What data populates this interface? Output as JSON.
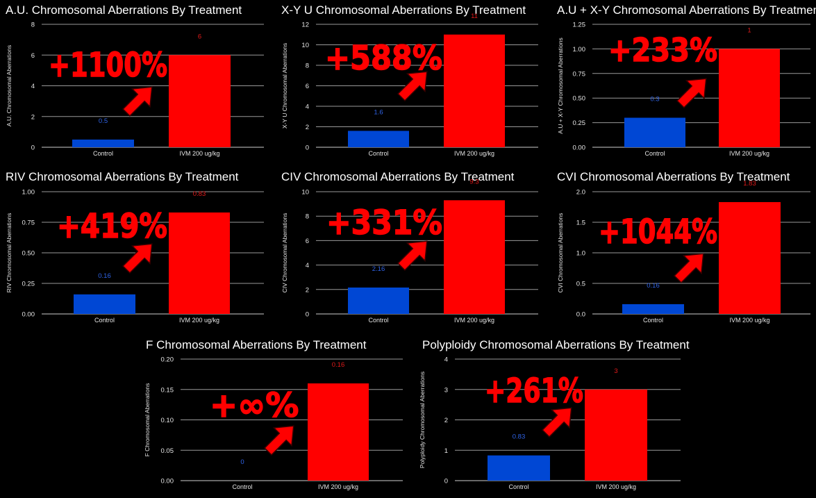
{
  "colors": {
    "control": "#0047d4",
    "treatment": "#ff0000",
    "grid": "#9a9a9a",
    "text": "#ffffff",
    "axis_text": "#e6e6e6"
  },
  "chart_data": [
    {
      "type": "bar",
      "title": "A.U. Chromosomal Aberrations By Treatment",
      "ylabel": "A.U. Chromosomal Aberrations",
      "categories": [
        "Control",
        "IVM 200 ug/kg"
      ],
      "values": [
        0.5,
        6
      ],
      "value_labels": [
        "0.5",
        "6"
      ],
      "ylim": [
        0,
        8
      ],
      "yticks": [
        "0",
        "2",
        "4",
        "6",
        "8"
      ],
      "annotation": "+1100%"
    },
    {
      "type": "bar",
      "title": "X-Y U Chromosomal Aberrations By Treatment",
      "ylabel": "X-Y U Chromosomal Aberrations",
      "categories": [
        "Control",
        "IVM 200 ug/kg"
      ],
      "values": [
        1.6,
        11
      ],
      "value_labels": [
        "1.6",
        "11"
      ],
      "ylim": [
        0,
        12
      ],
      "yticks": [
        "0",
        "2",
        "4",
        "6",
        "8",
        "10",
        "12"
      ],
      "annotation": "+588%"
    },
    {
      "type": "bar",
      "title": "A.U + X-Y Chromosomal Aberrations By Treatment",
      "ylabel": "A.U + X-Y Chromosomal Aberrations",
      "categories": [
        "Control",
        "IVM 200 ug/kg"
      ],
      "values": [
        0.3,
        1
      ],
      "value_labels": [
        "0.3",
        "1"
      ],
      "ylim": [
        0,
        1.25
      ],
      "yticks": [
        "0.00",
        "0.25",
        "0.50",
        "0.75",
        "1.00",
        "1.25"
      ],
      "annotation": "+233%"
    },
    {
      "type": "bar",
      "title": "RIV Chromosomal Aberrations By Treatment",
      "ylabel": "RIV Chromosomal Aberrations",
      "categories": [
        "Control",
        "IVM 200 ug/kg"
      ],
      "values": [
        0.16,
        0.83
      ],
      "value_labels": [
        "0.16",
        "0.83"
      ],
      "ylim": [
        0,
        1
      ],
      "yticks": [
        "0.00",
        "0.25",
        "0.50",
        "0.75",
        "1.00"
      ],
      "annotation": "+419%"
    },
    {
      "type": "bar",
      "title": "CIV Chromosomal Aberrations By Treatment",
      "ylabel": "CIV Chromosomal Aberrations",
      "categories": [
        "Control",
        "IVM 200 ug/kg"
      ],
      "values": [
        2.16,
        9.3
      ],
      "value_labels": [
        "2.16",
        "9.3"
      ],
      "ylim": [
        0,
        10
      ],
      "yticks": [
        "0",
        "2",
        "4",
        "6",
        "8",
        "10"
      ],
      "annotation": "+331%"
    },
    {
      "type": "bar",
      "title": "CVI Chromosomal Aberrations By Treatment",
      "ylabel": "CVI Chromosomal Aberrations",
      "categories": [
        "Control",
        "IVM 200 ug/kg"
      ],
      "values": [
        0.16,
        1.83
      ],
      "value_labels": [
        "0.16",
        "1.83"
      ],
      "ylim": [
        0,
        2
      ],
      "yticks": [
        "0.0",
        "0.5",
        "1.0",
        "1.5",
        "2.0"
      ],
      "annotation": "+1044%"
    },
    {
      "type": "bar",
      "title": "F Chromosomal Aberrations By Treatment",
      "ylabel": "F Chromosomal Aberrations",
      "categories": [
        "Control",
        "IVM 200 ug/kg"
      ],
      "values": [
        0,
        0.16
      ],
      "value_labels": [
        "0",
        "0.16"
      ],
      "ylim": [
        0,
        0.2
      ],
      "yticks": [
        "0.00",
        "0.05",
        "0.10",
        "0.15",
        "0.20"
      ],
      "annotation": "+∞%"
    },
    {
      "type": "bar",
      "title": "Polyploidy Chromosomal Aberrations By Treatment",
      "ylabel": "Polyploidy Chromosomal Aberrations",
      "categories": [
        "Control",
        "IVM 200 ug/kg"
      ],
      "values": [
        0.83,
        3
      ],
      "value_labels": [
        "0.83",
        "3"
      ],
      "ylim": [
        0,
        4
      ],
      "yticks": [
        "0",
        "1",
        "2",
        "3",
        "4"
      ],
      "annotation": "+261%"
    }
  ]
}
